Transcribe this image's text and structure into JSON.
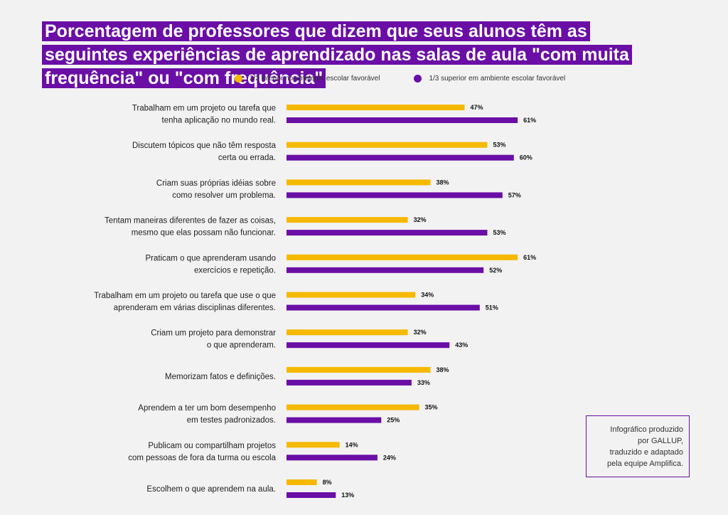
{
  "title": "Porcentagem de professores que dizem que seus alunos têm as seguintes experiências de aprendizado nas salas de aula \"com muita frequência\" ou \"com frequência\"",
  "credit": "Infográfico produzido\npor GALLUP,\ntraduzido e adaptado\npela equipe Amplifica.",
  "colors": {
    "series1": "#f6b900",
    "series2": "#6a0ea6",
    "title_bg": "#6a0ea6"
  },
  "chart_data": {
    "type": "bar",
    "orientation": "horizontal",
    "title": "Porcentagem de professores que dizem que seus alunos têm as seguintes experiências de aprendizado nas salas de aula \"com muita frequência\" ou \"com frequência\"",
    "legend_position": "top",
    "categories": [
      [
        "Trabalham em um projeto ou tarefa que",
        "tenha aplicação no mundo real."
      ],
      [
        "Discutem tópicos que não têm resposta",
        "certa ou errada."
      ],
      [
        "Criam suas próprias idéias sobre",
        "como resolver um problema."
      ],
      [
        "Tentam maneiras diferentes de fazer as coisas,",
        "mesmo que elas possam não funcionar."
      ],
      [
        "Praticam o que aprenderam usando",
        "exercícios e repetição."
      ],
      [
        "Trabalham em um projeto ou tarefa que use o que",
        "aprenderam em várias disciplinas diferentes."
      ],
      [
        "Criam um projeto para demonstrar",
        "o que aprenderam."
      ],
      [
        "Memorizam fatos e definições."
      ],
      [
        "Aprendem a ter um bom desempenho",
        "em testes padronizados."
      ],
      [
        "Publicam ou compartilham projetos",
        "com pessoas de fora da turma ou escola"
      ],
      [
        "Escolhem o que aprendem na aula."
      ]
    ],
    "series": [
      {
        "name": "2/3 inferior no ambiente escolar favorável",
        "color": "#f6b900",
        "values": [
          47,
          53,
          38,
          32,
          61,
          34,
          32,
          38,
          35,
          14,
          8
        ]
      },
      {
        "name": "1/3 superior em ambiente escolar favorável",
        "color": "#6a0ea6",
        "values": [
          61,
          60,
          57,
          53,
          52,
          51,
          43,
          33,
          25,
          24,
          13
        ]
      }
    ],
    "value_suffix": "%",
    "xlim": [
      0,
      100
    ],
    "grid": false
  }
}
